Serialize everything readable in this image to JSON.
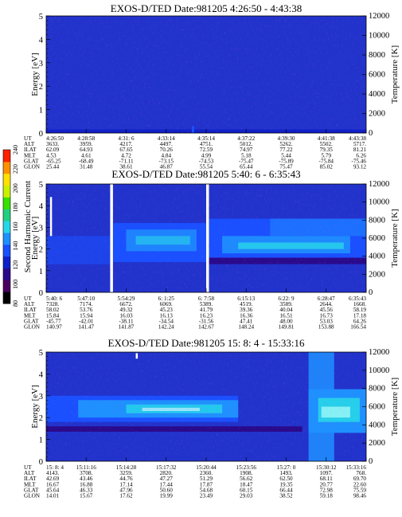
{
  "colors": {
    "spectrogram_scale": [
      "#000000",
      "#4b0060",
      "#2a0a8c",
      "#1020c8",
      "#1a50ff",
      "#1f90ff",
      "#27d6e8",
      "#1fd080",
      "#38e000",
      "#c8f000",
      "#ffe000",
      "#ff9000",
      "#ff2000"
    ],
    "background": "#2233cc"
  },
  "colorbar": {
    "label": "Second Harmonic Current",
    "ticks": [
      "80",
      "100",
      "120",
      "140",
      "160",
      "180",
      "200",
      "220",
      "240"
    ]
  },
  "chart_data": [
    {
      "type": "heatmap",
      "title": "EXOS-D/TED   Date:981205  4:26:50 - 4:43:38",
      "ylabel": "Energy [eV]",
      "y2label": "Temperature [K]",
      "ylim": [
        0,
        5
      ],
      "y2lim": [
        0,
        12000
      ],
      "yticks": [
        "0",
        "1",
        "2",
        "3",
        "4",
        "5"
      ],
      "y2ticks": [
        "0",
        "2000",
        "4000",
        "6000",
        "8000",
        "10000",
        "12000"
      ],
      "ephemeris_labels": [
        "UT",
        "ALT",
        "ILAT",
        "MLT",
        "GLAT",
        "GLON"
      ],
      "ephemeris": [
        [
          "4:26:50",
          "3633.",
          "62.09",
          "4.53",
          "-65.25",
          "25.44"
        ],
        [
          "4:28:58",
          "3959.",
          "64.93",
          "4.61",
          "-68.49",
          "31.48"
        ],
        [
          "4:31: 6",
          "4217.",
          "67.65",
          "4.72",
          "-71.11",
          "38.61"
        ],
        [
          "4:33:14",
          "4497.",
          "70.26",
          "4.84",
          "-73.15",
          "46.87"
        ],
        [
          "4:35:14",
          "4751.",
          "72.59",
          "4.99",
          "-74.53",
          "55.54"
        ],
        [
          "4:37:22",
          "5012.",
          "74.97",
          "5.18",
          "-75.47",
          "65.44"
        ],
        [
          "4:39:30",
          "5262.",
          "77.22",
          "5.44",
          "-75.89",
          "75.47"
        ],
        [
          "4:41:38",
          "5502.",
          "79.35",
          "5.79",
          "-75.84",
          "85.02"
        ],
        [
          "4:43:38",
          "5717.",
          "81.21",
          "6.26",
          "-75.46",
          "93.12"
        ]
      ]
    },
    {
      "type": "heatmap",
      "title": "EXOS-D/TED   Date:981205  5:40: 6 - 6:35:43",
      "ylabel": "Energy [eV]",
      "y2label": "Temperature [K]",
      "ylim": [
        0,
        5
      ],
      "y2lim": [
        0,
        12000
      ],
      "yticks": [
        "0",
        "1",
        "2",
        "3",
        "4",
        "5"
      ],
      "y2ticks": [
        "0",
        "2000",
        "4000",
        "6000",
        "8000",
        "10000",
        "12000"
      ],
      "ephemeris_labels": [
        "UT",
        "ALT",
        "ILAT",
        "MLT",
        "GLAT",
        "GLON"
      ],
      "ephemeris": [
        [
          "5:40: 6",
          "7328.",
          "58.02",
          "15.84",
          "-45.77",
          "140.97"
        ],
        [
          "5:47:10",
          "7174.",
          "53.76",
          "15.94",
          "-42.01",
          "141.47"
        ],
        [
          "5:54:29",
          "6672.",
          "49.32",
          "16.03",
          "-38.11",
          "141.87"
        ],
        [
          "6: 1:25",
          "6069.",
          "45.23",
          "16.13",
          "-34.54",
          "142.24"
        ],
        [
          "6: 7:58",
          "5389.",
          "41.79",
          "16.23",
          "-31.56",
          "142.67"
        ],
        [
          "6:15:13",
          "4519.",
          "39.36",
          "16.36",
          "47.41",
          "148.24"
        ],
        [
          "6:22: 9",
          "3589.",
          "40.04",
          "16.51",
          "48.00",
          "149.81"
        ],
        [
          "6:28:47",
          "2644.",
          "45.56",
          "16.73",
          "53.03",
          "153.88"
        ],
        [
          "6:35:43",
          "1668.",
          "58.19",
          "17.18",
          "64.26",
          "166.54"
        ]
      ]
    },
    {
      "type": "heatmap",
      "title": "EXOS-D/TED   Date:981205  15: 8: 4 - 15:33:16",
      "ylabel": "Energy [eV]",
      "y2label": "Temperature [K]",
      "ylim": [
        0,
        5
      ],
      "y2lim": [
        0,
        12000
      ],
      "yticks": [
        "0",
        "1",
        "2",
        "3",
        "4",
        "5"
      ],
      "y2ticks": [
        "0",
        "2000",
        "4000",
        "6000",
        "8000",
        "10000",
        "12000"
      ],
      "ephemeris_labels": [
        "UT",
        "ALT",
        "ILAT",
        "MLT",
        "GLAT",
        "GLON"
      ],
      "ephemeris": [
        [
          "15: 8: 4",
          "4143.",
          "42.69",
          "16.67",
          "45.64",
          "14.01"
        ],
        [
          "15:11:16",
          "3708.",
          "43.46",
          "16.88",
          "46.33",
          "15.67"
        ],
        [
          "15:14:28",
          "3259.",
          "44.76",
          "17.14",
          "47.96",
          "17.62"
        ],
        [
          "15:17:32",
          "2820.",
          "47.27",
          "17.44",
          "50.60",
          "19.99"
        ],
        [
          "15:20:44",
          "2360.",
          "51.29",
          "17.87",
          "54.68",
          "23.49"
        ],
        [
          "15:23:56",
          "1908.",
          "56.62",
          "18.47",
          "60.15",
          "29.03"
        ],
        [
          "15:27: 0",
          "1493.",
          "62.50",
          "19.35",
          "66.44",
          "38.52"
        ],
        [
          "15:30:12",
          "1097.",
          "68.11",
          "20.77",
          "72.98",
          "59.18"
        ],
        [
          "15:33:16",
          "768.",
          "69.70",
          "22.60",
          "75.59",
          "98.46"
        ]
      ]
    }
  ]
}
